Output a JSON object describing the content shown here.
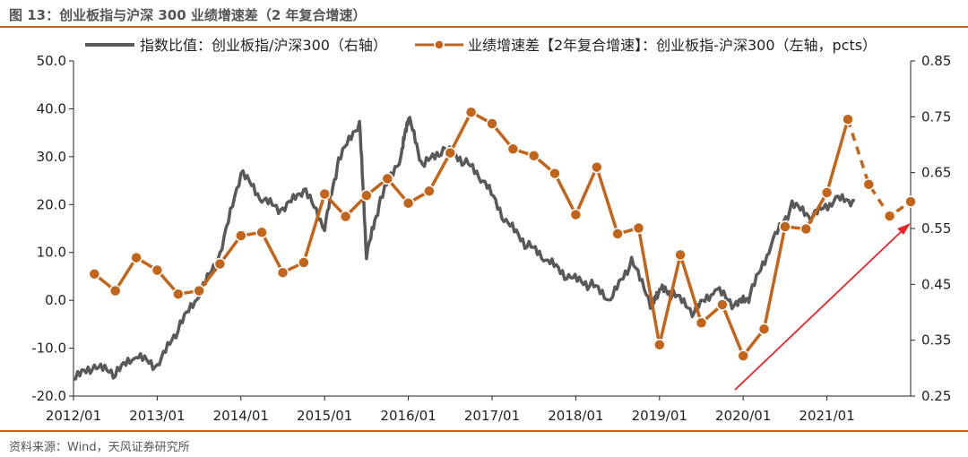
{
  "title": "图 13：创业板指与沪深 300 业绩增速差（2 年复合增速）",
  "source": "资料来源：Wind，天风证券研究所",
  "colors": {
    "gray_series": "#595959",
    "orange_series": "#c2651b",
    "arrow": "#e8232a",
    "rule": "#c2651b"
  },
  "chart_data": {
    "type": "line",
    "series": [
      {
        "name": "指数比值：创业板指/沪深300（右轴）",
        "axis": "right",
        "color": "#595959",
        "x": [
          "2012/01",
          "2012/04",
          "2012/07",
          "2012/10",
          "2013/01",
          "2013/04",
          "2013/07",
          "2013/10",
          "2014/01",
          "2014/04",
          "2014/07",
          "2014/10",
          "2015/01",
          "2015/03",
          "2015/06",
          "2015/07",
          "2015/09",
          "2015/12",
          "2016/01",
          "2016/03",
          "2016/06",
          "2016/09",
          "2016/12",
          "2017/03",
          "2017/06",
          "2017/09",
          "2017/12",
          "2018/03",
          "2018/06",
          "2018/09",
          "2018/12",
          "2019/01",
          "2019/03",
          "2019/06",
          "2019/09",
          "2019/12",
          "2020/02",
          "2020/05",
          "2020/08",
          "2020/11",
          "2021/02",
          "2021/05"
        ],
        "values": [
          0.28,
          0.3,
          0.29,
          0.32,
          0.3,
          0.37,
          0.43,
          0.5,
          0.65,
          0.6,
          0.58,
          0.62,
          0.55,
          0.67,
          0.74,
          0.5,
          0.6,
          0.68,
          0.75,
          0.66,
          0.69,
          0.67,
          0.63,
          0.56,
          0.52,
          0.49,
          0.46,
          0.45,
          0.42,
          0.49,
          0.41,
          0.44,
          0.43,
          0.4,
          0.44,
          0.41,
          0.43,
          0.52,
          0.59,
          0.57,
          0.6,
          0.6
        ]
      },
      {
        "name": "业绩增速差【2年复合增速】：创业板指-沪深300（左轴，pcts）",
        "axis": "left",
        "color": "#c2651b",
        "x": [
          "2012/04",
          "2012/07",
          "2012/10",
          "2013/01",
          "2013/04",
          "2013/07",
          "2013/10",
          "2014/01",
          "2014/04",
          "2014/07",
          "2014/10",
          "2015/01",
          "2015/04",
          "2015/07",
          "2015/10",
          "2016/01",
          "2016/04",
          "2016/07",
          "2016/10",
          "2017/01",
          "2017/04",
          "2017/07",
          "2017/10",
          "2018/01",
          "2018/04",
          "2018/07",
          "2018/10",
          "2019/01",
          "2019/04",
          "2019/07",
          "2019/10",
          "2020/01",
          "2020/04",
          "2020/07",
          "2020/10",
          "2021/01",
          "2021/04",
          "2021/07",
          "2021/10",
          "2022/01"
        ],
        "values": [
          5.5,
          2.0,
          8.9,
          6.3,
          1.3,
          2.0,
          7.6,
          13.5,
          14.2,
          5.8,
          7.9,
          22.2,
          17.5,
          21.9,
          25.4,
          20.3,
          22.8,
          30.8,
          39.3,
          36.9,
          31.6,
          30.2,
          26.5,
          17.9,
          27.8,
          13.9,
          15.1,
          -9.3,
          9.5,
          -4.7,
          -0.9,
          -11.6,
          -6.0,
          15.4,
          14.9,
          22.5,
          37.8,
          24.2,
          17.6,
          20.6
        ],
        "dashed_from_index": 36
      }
    ],
    "x_tick_labels": [
      "2012/01",
      "2013/01",
      "2014/01",
      "2015/01",
      "2016/01",
      "2017/01",
      "2018/01",
      "2019/01",
      "2020/01",
      "2021/01"
    ],
    "y_left": {
      "min": -20,
      "max": 50,
      "tick_labels": [
        "50.0",
        "40.0",
        "30.0",
        "20.0",
        "10.0",
        "0.0",
        "-10.0",
        "-20.0"
      ]
    },
    "y_right": {
      "min": 0.25,
      "max": 0.85,
      "tick_labels": [
        "0.85",
        "0.75",
        "0.65",
        "0.55",
        "0.45",
        "0.35",
        "0.25"
      ]
    },
    "legend_position": "top",
    "grid": false,
    "annotation": "red arrow rising toward the latest point"
  }
}
